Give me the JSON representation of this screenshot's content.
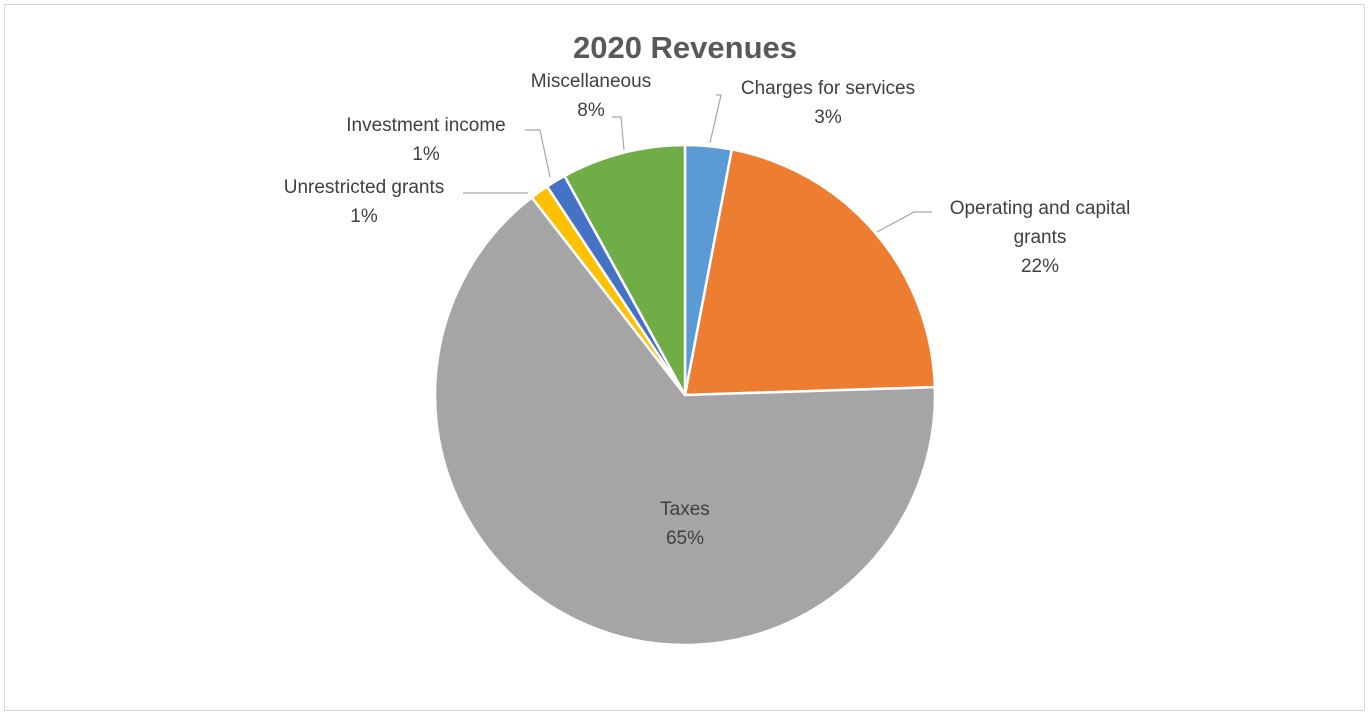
{
  "chart_data": {
    "type": "pie",
    "title": "2020 Revenues",
    "slices": [
      {
        "label": "Charges for services",
        "value": 3,
        "value_label": "3%",
        "color": "#5b9bd5"
      },
      {
        "label": "Operating and capital grants",
        "value": 21.5,
        "value_label": "22%",
        "color": "#ed7d31"
      },
      {
        "label": "Taxes",
        "value": 65,
        "value_label": "65%",
        "color": "#a5a5a5"
      },
      {
        "label": "Unrestricted grants",
        "value": 1.2,
        "value_label": "1%",
        "color": "#ffc000"
      },
      {
        "label": "Investment income",
        "value": 1.3,
        "value_label": "1%",
        "color": "#4472c4"
      },
      {
        "label": "Miscellaneous",
        "value": 8,
        "value_label": "8%",
        "color": "#70ad47"
      }
    ],
    "start_angle": "12 o'clock",
    "direction": "clockwise",
    "legend": "none"
  }
}
